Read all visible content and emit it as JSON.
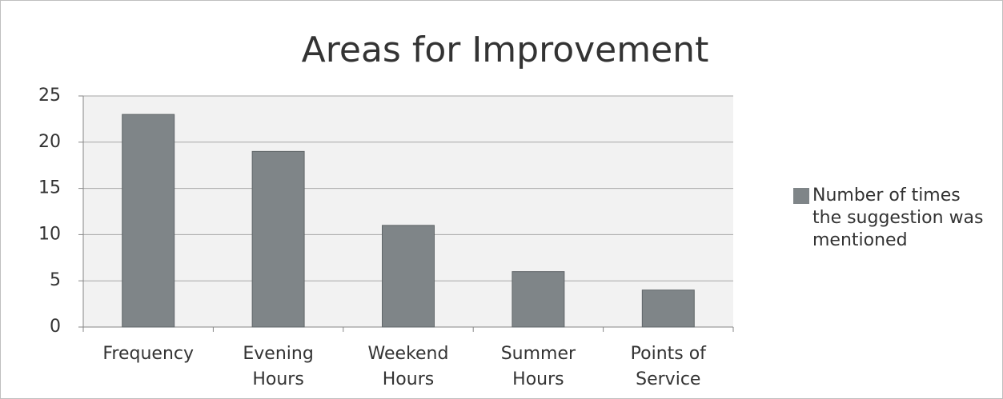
{
  "chart_data": {
    "type": "bar",
    "title": "Areas for Improvement",
    "categories": [
      "Frequency",
      "Evening Hours",
      "Weekend Hours",
      "Summer Hours",
      "Points of Service"
    ],
    "series": [
      {
        "name": "Number of times the suggestion was mentioned",
        "color": "#7f8588",
        "values": [
          23,
          19,
          11,
          6,
          4
        ]
      }
    ],
    "ylim": [
      0,
      25
    ],
    "yticks": [
      0,
      5,
      10,
      15,
      20,
      25
    ],
    "grid": true,
    "legend": "right"
  }
}
